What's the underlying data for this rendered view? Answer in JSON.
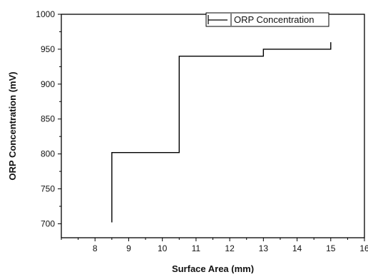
{
  "chart_data": {
    "type": "line",
    "step": "post",
    "title": "",
    "xlabel": "Surface Area (mm)",
    "ylabel": "ORP Concentration (mV)",
    "xlim": [
      7,
      16
    ],
    "ylim": [
      680,
      1000
    ],
    "xticks": [
      8,
      9,
      10,
      11,
      12,
      13,
      14,
      15,
      16
    ],
    "yticks": [
      700,
      750,
      800,
      850,
      900,
      950,
      1000
    ],
    "xminor_step": 0.5,
    "yminor_step": 25,
    "grid": false,
    "legend_position": "top-right",
    "series": [
      {
        "name": "ORP Concentration",
        "color": "#000000",
        "x": [
          8.5,
          8.5,
          10.5,
          10.5,
          13,
          13,
          15,
          15
        ],
        "y": [
          702,
          802,
          802,
          940,
          940,
          950,
          950,
          960
        ]
      }
    ]
  }
}
